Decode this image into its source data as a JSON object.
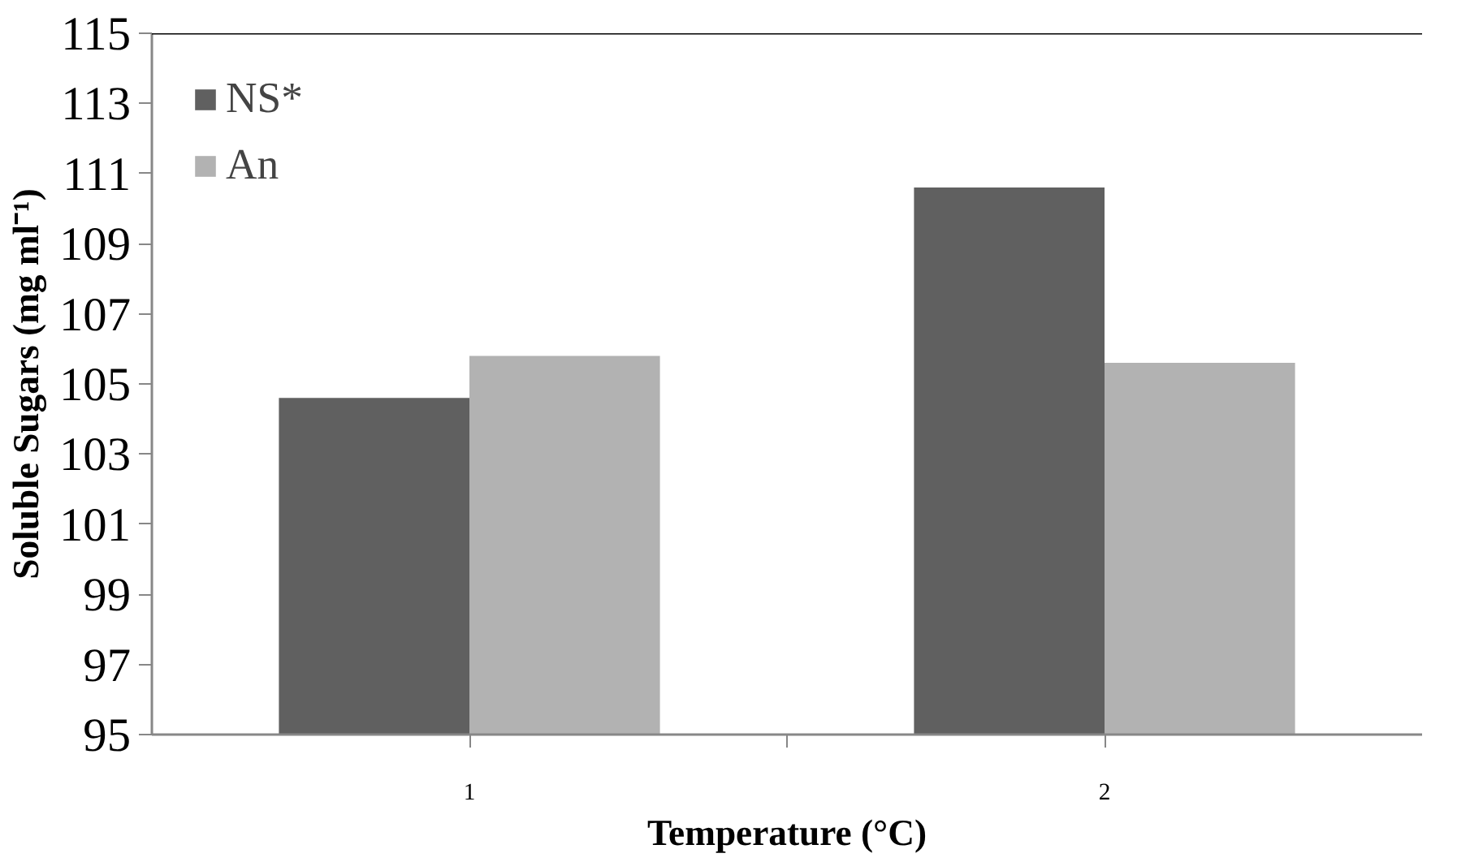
{
  "chart_data": {
    "type": "bar",
    "xlabel": "Temperature (°C)",
    "ylabel": "Soluble Sugars (mg ml⁻¹)",
    "categories": [
      "1",
      "2"
    ],
    "series": [
      {
        "name": "NS*",
        "color": "#606060",
        "values": [
          104.6,
          110.6
        ]
      },
      {
        "name": "An",
        "color": "#b2b2b2",
        "values": [
          105.8,
          105.6
        ]
      }
    ],
    "ylim": [
      95,
      115
    ],
    "yticks": [
      95,
      97,
      99,
      101,
      103,
      105,
      107,
      109,
      111,
      113,
      115
    ],
    "grid": false,
    "legend": "top left"
  }
}
